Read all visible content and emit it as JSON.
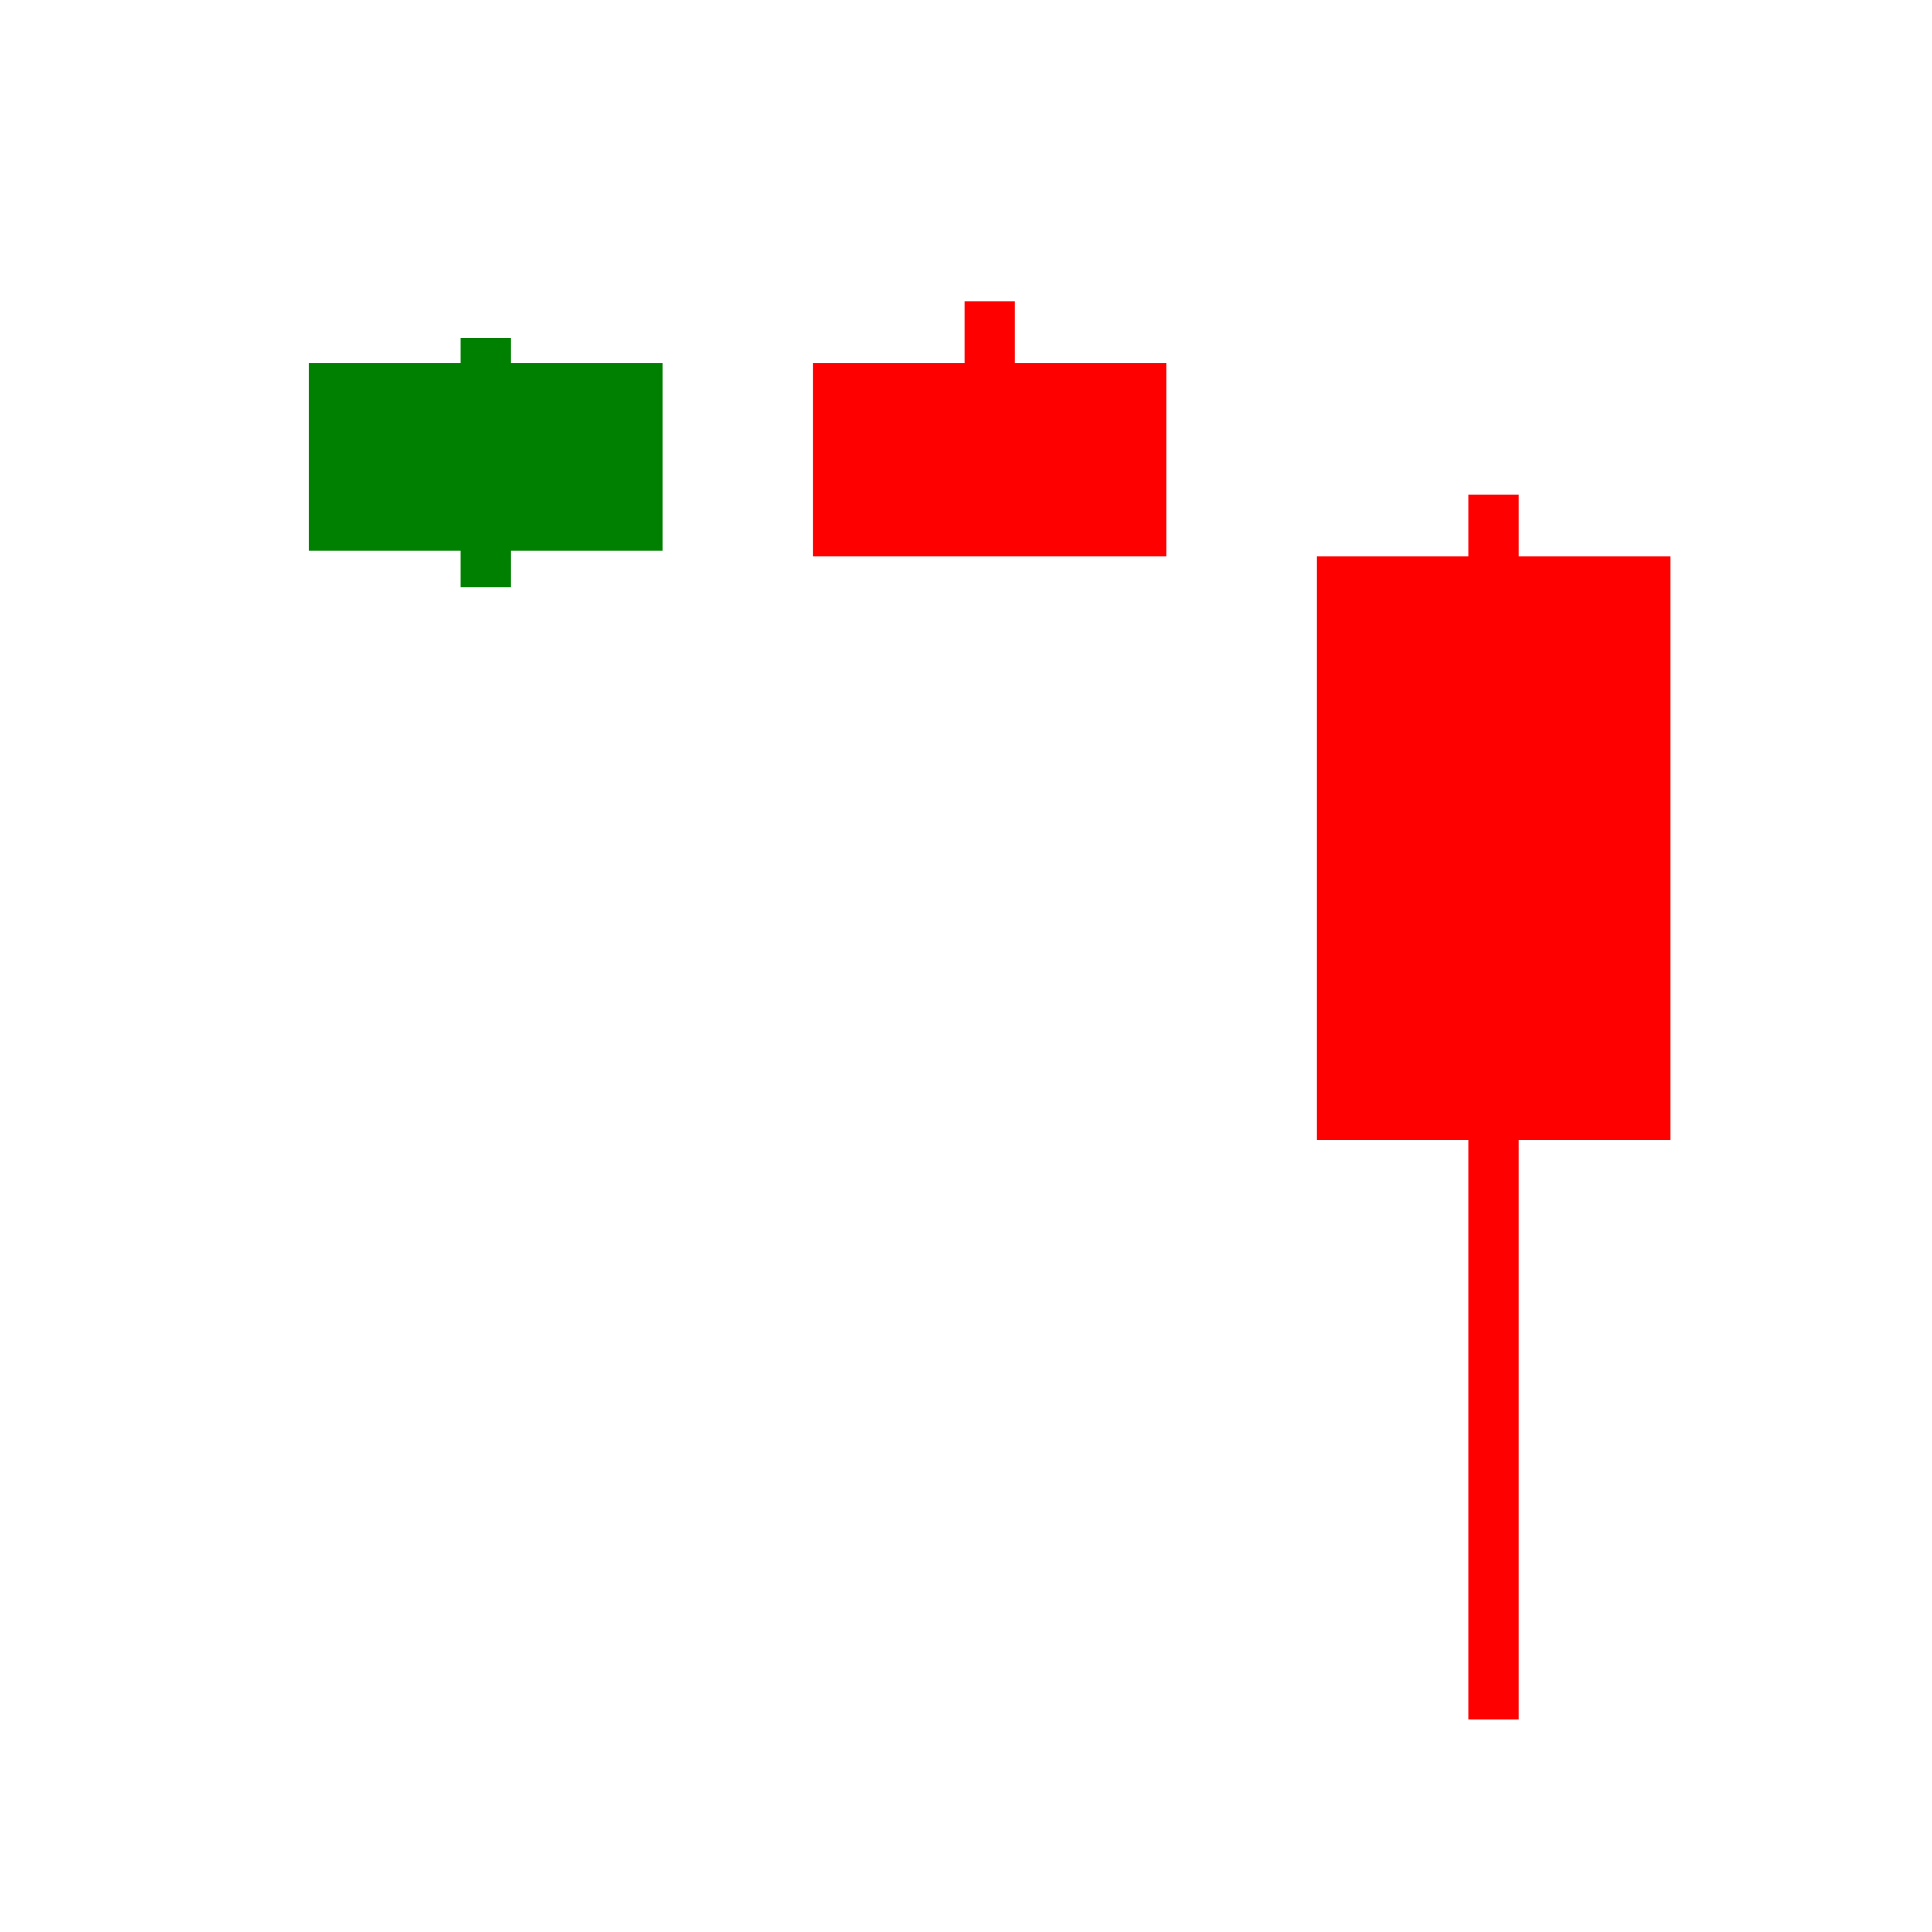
{
  "chart_data": {
    "type": "candlestick",
    "categories": [
      null,
      null,
      null
    ],
    "open": [
      71.5,
      81.2,
      71.2
    ],
    "high": [
      82.5,
      84.4,
      74.4
    ],
    "low": [
      69.6,
      71.2,
      11.0
    ],
    "close": [
      81.2,
      71.2,
      41.0
    ],
    "up_color": "#008000",
    "down_color": "#ff0000",
    "ylim": [
      0,
      100
    ]
  }
}
